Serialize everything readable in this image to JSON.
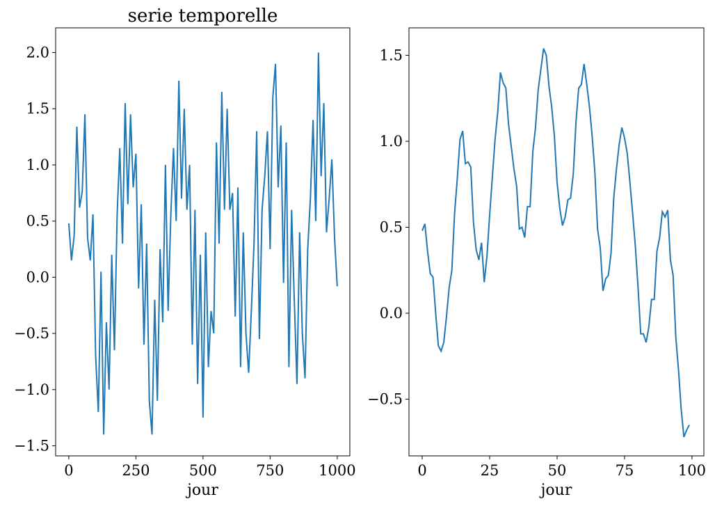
{
  "chart_data": [
    {
      "type": "line",
      "title": "serie temporelle",
      "x_label": "jour",
      "color": "#1f77b4",
      "x": [
        0,
        10,
        20,
        30,
        40,
        50,
        60,
        70,
        80,
        90,
        100,
        110,
        120,
        130,
        140,
        150,
        160,
        170,
        180,
        190,
        200,
        210,
        220,
        230,
        240,
        250,
        260,
        270,
        280,
        290,
        300,
        310,
        320,
        330,
        340,
        350,
        360,
        370,
        380,
        390,
        400,
        410,
        420,
        430,
        440,
        450,
        460,
        470,
        480,
        490,
        500,
        510,
        520,
        530,
        540,
        550,
        560,
        570,
        580,
        590,
        600,
        610,
        620,
        630,
        640,
        650,
        660,
        670,
        680,
        690,
        700,
        710,
        720,
        730,
        740,
        750,
        760,
        770,
        780,
        790,
        800,
        810,
        820,
        830,
        840,
        850,
        860,
        870,
        880,
        890,
        900,
        910,
        920,
        930,
        940,
        950,
        960,
        970,
        980,
        990,
        1000
      ],
      "values": [
        0.48,
        0.15,
        0.37,
        1.34,
        0.62,
        0.76,
        1.45,
        0.35,
        0.15,
        0.56,
        -0.7,
        -1.2,
        0.05,
        -1.4,
        -0.4,
        -1.0,
        0.2,
        -0.65,
        0.55,
        1.15,
        0.3,
        1.55,
        0.65,
        1.45,
        0.8,
        1.1,
        -0.1,
        0.65,
        -0.6,
        0.3,
        -1.1,
        -1.4,
        -0.2,
        -1.1,
        0.25,
        -0.4,
        1.0,
        -0.3,
        0.55,
        1.15,
        0.5,
        1.75,
        0.7,
        1.5,
        0.6,
        1.0,
        -0.6,
        0.6,
        -0.95,
        0.2,
        -1.25,
        0.4,
        -0.8,
        -0.3,
        -0.5,
        1.2,
        0.3,
        1.65,
        0.6,
        1.5,
        0.6,
        0.75,
        -0.35,
        0.8,
        -0.8,
        0.4,
        -0.5,
        -0.85,
        -0.3,
        0.3,
        1.3,
        -0.55,
        0.6,
        0.9,
        1.3,
        0.25,
        1.6,
        1.9,
        0.8,
        1.35,
        -0.05,
        1.2,
        -0.8,
        0.6,
        -0.2,
        -0.95,
        0.4,
        -0.5,
        -0.9,
        0.25,
        0.7,
        1.4,
        0.5,
        2.0,
        0.9,
        1.55,
        0.4,
        0.7,
        1.05,
        0.35,
        -0.08
      ],
      "xlim": [
        -49,
        1047
      ],
      "ylim": [
        -1.59,
        2.22
      ],
      "xticks": [
        0,
        250,
        500,
        750,
        1000
      ],
      "yticks": [
        {
          "value": -1.5,
          "label": "−1.5"
        },
        {
          "value": -1.0,
          "label": "−1.0"
        },
        {
          "value": -0.5,
          "label": "−0.5"
        },
        {
          "value": 0.0,
          "label": "0.0"
        },
        {
          "value": 0.5,
          "label": "0.5"
        },
        {
          "value": 1.0,
          "label": "1.0"
        },
        {
          "value": 1.5,
          "label": "1.5"
        },
        {
          "value": 2.0,
          "label": "2.0"
        }
      ]
    },
    {
      "type": "line",
      "x_label": "jour",
      "color": "#1f77b4",
      "x": [
        0,
        1,
        2,
        3,
        4,
        5,
        6,
        7,
        8,
        9,
        10,
        11,
        12,
        13,
        14,
        15,
        16,
        17,
        18,
        19,
        20,
        21,
        22,
        23,
        24,
        25,
        26,
        27,
        28,
        29,
        30,
        31,
        32,
        33,
        34,
        35,
        36,
        37,
        38,
        39,
        40,
        41,
        42,
        43,
        44,
        45,
        46,
        47,
        48,
        49,
        50,
        51,
        52,
        53,
        54,
        55,
        56,
        57,
        58,
        59,
        60,
        61,
        62,
        63,
        64,
        65,
        66,
        67,
        68,
        69,
        70,
        71,
        72,
        73,
        74,
        75,
        76,
        77,
        78,
        79,
        80,
        81,
        82,
        83,
        84,
        85,
        86,
        87,
        88,
        89,
        90,
        91,
        92,
        93,
        94,
        95,
        96,
        97,
        98,
        99
      ],
      "values": [
        0.48,
        0.52,
        0.36,
        0.23,
        0.21,
        0.0,
        -0.19,
        -0.22,
        -0.17,
        -0.02,
        0.15,
        0.25,
        0.58,
        0.78,
        1.01,
        1.06,
        0.87,
        0.88,
        0.85,
        0.53,
        0.37,
        0.31,
        0.41,
        0.18,
        0.33,
        0.57,
        0.79,
        1.01,
        1.17,
        1.4,
        1.34,
        1.31,
        1.1,
        0.97,
        0.84,
        0.74,
        0.49,
        0.5,
        0.44,
        0.62,
        0.62,
        0.94,
        1.08,
        1.3,
        1.42,
        1.54,
        1.5,
        1.32,
        1.2,
        1.03,
        0.76,
        0.61,
        0.51,
        0.56,
        0.66,
        0.67,
        0.81,
        1.11,
        1.31,
        1.33,
        1.45,
        1.33,
        1.2,
        1.03,
        0.82,
        0.49,
        0.38,
        0.13,
        0.2,
        0.22,
        0.35,
        0.67,
        0.84,
        0.98,
        1.08,
        1.02,
        0.93,
        0.76,
        0.58,
        0.39,
        0.15,
        -0.12,
        -0.12,
        -0.17,
        -0.08,
        0.08,
        0.08,
        0.36,
        0.44,
        0.59,
        0.56,
        0.6,
        0.31,
        0.22,
        -0.14,
        -0.33,
        -0.56,
        -0.72,
        -0.68,
        -0.65
      ],
      "xlim": [
        -4.9,
        104.4
      ],
      "ylim": [
        -0.83,
        1.66
      ],
      "xticks": [
        0,
        25,
        50,
        75,
        100
      ],
      "yticks": [
        {
          "value": -0.5,
          "label": "−0.5"
        },
        {
          "value": 0.0,
          "label": "0.0"
        },
        {
          "value": 0.5,
          "label": "0.5"
        },
        {
          "value": 1.0,
          "label": "1.0"
        },
        {
          "value": 1.5,
          "label": "1.5"
        }
      ]
    }
  ]
}
